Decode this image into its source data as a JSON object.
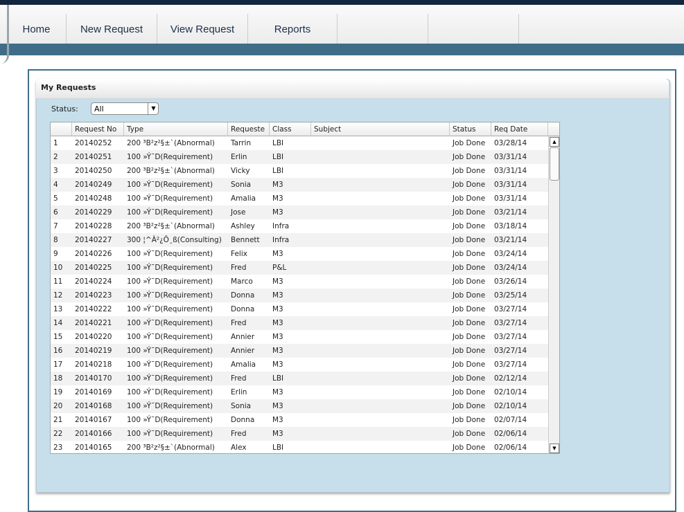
{
  "nav": {
    "tabs": [
      "Home",
      "New Request",
      "View Request",
      "Reports"
    ]
  },
  "panel": {
    "title": "My Requests"
  },
  "filter": {
    "label": "Status:",
    "value": "All"
  },
  "table": {
    "headers": [
      "Request No",
      "Type",
      "Requeste",
      "Class",
      "Subject",
      "Status",
      "Req Date"
    ],
    "rows": [
      [
        "1",
        "20140252",
        "200 ³B²z²§±`(Abnormal)",
        "Tarrin",
        "LBI",
        "Job Done",
        "03/28/14"
      ],
      [
        "2",
        "20140251",
        "100 »Ý¯D(Requirement)",
        "Erlin",
        "LBI",
        "Job Done",
        "03/31/14"
      ],
      [
        "3",
        "20140250",
        "200 ³B²z²§±`(Abnormal)",
        "Vicky",
        "LBI",
        "Job Done",
        "03/31/14"
      ],
      [
        "4",
        "20140249",
        "100 »Ý¯D(Requirement)",
        "Sonia",
        "M3",
        "Job Done",
        "03/31/14"
      ],
      [
        "5",
        "20140248",
        "100 »Ý¯D(Requirement)",
        "Amalia",
        "M3",
        "Job Done",
        "03/31/14"
      ],
      [
        "6",
        "20140229",
        "100 »Ý¯D(Requirement)",
        "Jose",
        "M3",
        "Job Done",
        "03/21/14"
      ],
      [
        "7",
        "20140228",
        "200 ³B²z²§±`(Abnormal)",
        "Ashley",
        "Infra",
        "Job Done",
        "03/18/14"
      ],
      [
        "8",
        "20140227",
        "300 ¦^À²¿Ô¸ß(Consulting)",
        "Bennett",
        "Infra",
        "Job Done",
        "03/21/14"
      ],
      [
        "9",
        "20140226",
        "100 »Ý¯D(Requirement)",
        "Felix",
        "M3",
        "Job Done",
        "03/24/14"
      ],
      [
        "10",
        "20140225",
        "100 »Ý¯D(Requirement)",
        "Fred",
        "P&L",
        "Job Done",
        "03/24/14"
      ],
      [
        "11",
        "20140224",
        "100 »Ý¯D(Requirement)",
        "Marco",
        "M3",
        "Job Done",
        "03/26/14"
      ],
      [
        "12",
        "20140223",
        "100 »Ý¯D(Requirement)",
        "Donna",
        "M3",
        "Job Done",
        "03/25/14"
      ],
      [
        "13",
        "20140222",
        "100 »Ý¯D(Requirement)",
        "Donna",
        "M3",
        "Job Done",
        "03/27/14"
      ],
      [
        "14",
        "20140221",
        "100 »Ý¯D(Requirement)",
        "Fred",
        "M3",
        "Job Done",
        "03/27/14"
      ],
      [
        "15",
        "20140220",
        "100 »Ý¯D(Requirement)",
        "Annier",
        "M3",
        "Job Done",
        "03/27/14"
      ],
      [
        "16",
        "20140219",
        "100 »Ý¯D(Requirement)",
        "Annier",
        "M3",
        "Job Done",
        "03/27/14"
      ],
      [
        "17",
        "20140218",
        "100 »Ý¯D(Requirement)",
        "Amalia",
        "M3",
        "Job Done",
        "03/27/14"
      ],
      [
        "18",
        "20140170",
        "100 »Ý¯D(Requirement)",
        "Fred",
        "LBI",
        "Job Done",
        "02/12/14"
      ],
      [
        "19",
        "20140169",
        "100 »Ý¯D(Requirement)",
        "Erlin",
        "M3",
        "Job Done",
        "02/10/14"
      ],
      [
        "20",
        "20140168",
        "100 »Ý¯D(Requirement)",
        "Sonia",
        "M3",
        "Job Done",
        "02/10/14"
      ],
      [
        "21",
        "20140167",
        "100 »Ý¯D(Requirement)",
        "Donna",
        "M3",
        "Job Done",
        "02/07/14"
      ],
      [
        "22",
        "20140166",
        "100 »Ý¯D(Requirement)",
        "Fred",
        "M3",
        "Job Done",
        "02/06/14"
      ],
      [
        "23",
        "20140165",
        "200 ³B²z²§±`(Abnormal)",
        "Alex",
        "LBI",
        "Job Done",
        "02/06/14"
      ]
    ]
  }
}
